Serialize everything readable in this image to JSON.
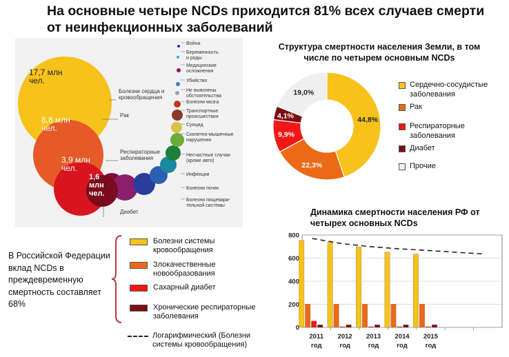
{
  "title": "На основные четыре NCDs приходится 81% всех случаев смерти от неинфекционных заболеваний",
  "bubble_chart": {
    "bubbles": [
      {
        "label": "Болезни сердца и кровообращения",
        "value_text": "17,7 млн\nчел.",
        "color": "#f6c21b"
      },
      {
        "label": "Рак",
        "value_text": "8,8 млн\nчел.",
        "color": "#e55a28"
      },
      {
        "label": "Респираторные заболевания",
        "value_text": "3,9 млн\nчел.",
        "color": "#d8141f"
      },
      {
        "label": "Диабет",
        "value_text": "1,6\nмлн\nчел.",
        "color": "#7a0a1c"
      }
    ],
    "small_labels": [
      {
        "text": "Война",
        "color": "#1d3f8f"
      },
      {
        "text": "Беременность\nи роды",
        "color": "#2ab4e6"
      },
      {
        "text": "Медицинские\nосложнения",
        "color": "#8b1a6b"
      },
      {
        "text": "Убийство",
        "color": "#3a7fc4"
      },
      {
        "text": "Не выяснены\nобстоятельства",
        "color": "#9aa3b4"
      },
      {
        "text": "Болезни мозга",
        "color": "#c2341e"
      },
      {
        "text": "Транспортные\nпроисшествия",
        "color": "#8d3a2a"
      },
      {
        "text": "Суицид",
        "color": "#d7c24a"
      },
      {
        "text": "Скелетно-мышечные\nнарушения",
        "color": "#6dab3a"
      },
      {
        "text": "Несчастные случаи\n(кроме авто)",
        "color": "#1d7f3a"
      },
      {
        "text": "Инфекции",
        "color": "#1a88a0"
      },
      {
        "text": "Болезни почек",
        "color": "#2b4fa6"
      },
      {
        "text": "Болезни пищевари-\nтельной системы",
        "color": "#8c1f6b"
      }
    ]
  },
  "pie_title": "Структура смертности населения Земли, в том числе по четырем основным NCDs",
  "bar_title": "Динамика смертности населения РФ от четырех основных NCDs",
  "rf_text": "В Российской Федерации вклад NCDs в преждевременную смертность составляет 68%",
  "chart_data": [
    {
      "type": "pie",
      "title": "Структура смертности населения Земли, в том числе по четырем основным NCDs",
      "slices": [
        {
          "name": "Сердечно-сосудистые заболевания",
          "value": 44.8,
          "label": "44,8%",
          "color": "#f6c21b"
        },
        {
          "name": "Рак",
          "value": 22.3,
          "label": "22,3%",
          "color": "#ec6a16"
        },
        {
          "name": "Респираторные заболевания",
          "value": 9.9,
          "label": "9,9%",
          "color": "#f21717"
        },
        {
          "name": "Диабет",
          "value": 4.1,
          "label": "4,1%",
          "color": "#7a0f14"
        },
        {
          "name": "Прочие",
          "value": 19.0,
          "label": "19,0%",
          "color": "#efefef"
        }
      ],
      "legend": [
        "Сердечно-сосудистые заболевания",
        "Рак",
        "Респираторные заболевания",
        "Диабет",
        "Прочие"
      ]
    },
    {
      "type": "bar",
      "title": "Динамика смертности населения РФ от четырех основных NCDs",
      "categories": [
        "2011\nгод",
        "2012\nгод",
        "2013\nгод",
        "2014\nгод",
        "2015\nгод",
        "",
        ""
      ],
      "series": [
        {
          "name": "Болезни системы кровообращения",
          "color": "#f6c21b",
          "values": [
            753,
            737,
            698,
            653,
            635,
            null,
            null
          ]
        },
        {
          "name": "Злокачественные новообразования",
          "color": "#ec6a16",
          "values": [
            202,
            202,
            201,
            202,
            202,
            null,
            null
          ]
        },
        {
          "name": "Сахарный диабет",
          "color": "#f21717",
          "values": [
            55,
            6,
            6,
            6,
            6,
            null,
            null
          ]
        },
        {
          "name": "Хронические респираторные заболевания",
          "color": "#7a0f14",
          "values": [
            22,
            22,
            22,
            22,
            22,
            null,
            null
          ]
        }
      ],
      "trend": {
        "name": "Логарифмический (Болезни системы кровообращения)",
        "values": [
          770,
          727,
          700,
          681,
          667,
          651,
          636
        ]
      },
      "ylim": [
        0,
        800
      ],
      "yticks": [
        0,
        200,
        400,
        600,
        800
      ],
      "grid": true
    }
  ]
}
